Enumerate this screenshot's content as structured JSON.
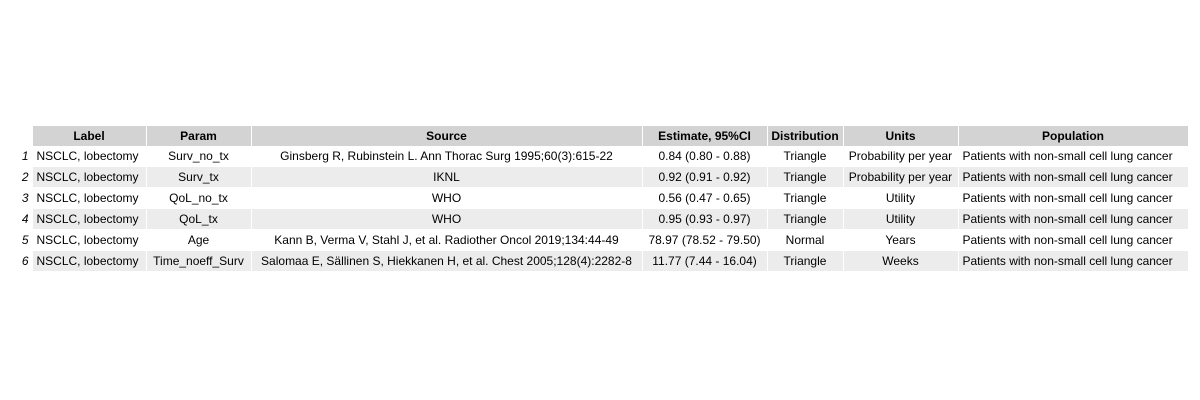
{
  "table": {
    "headers": [
      "Label",
      "Param",
      "Source",
      "Estimate, 95%CI",
      "Distribution",
      "Units",
      "Population"
    ],
    "rows": [
      {
        "index": "1",
        "label": "NSCLC, lobectomy",
        "param": "Surv_no_tx",
        "source": "Ginsberg R, Rubinstein L. Ann Thorac Surg 1995;60(3):615-22",
        "estimate": "0.84 (0.80 - 0.88)",
        "distribution": "Triangle",
        "units": "Probability per year",
        "population": "Patients with non-small cell lung cancer"
      },
      {
        "index": "2",
        "label": "NSCLC, lobectomy",
        "param": "Surv_tx",
        "source": "IKNL",
        "estimate": "0.92 (0.91 - 0.92)",
        "distribution": "Triangle",
        "units": "Probability per year",
        "population": "Patients with non-small cell lung cancer"
      },
      {
        "index": "3",
        "label": "NSCLC, lobectomy",
        "param": "QoL_no_tx",
        "source": "WHO",
        "estimate": "0.56 (0.47 - 0.65)",
        "distribution": "Triangle",
        "units": "Utility",
        "population": "Patients with non-small cell lung cancer"
      },
      {
        "index": "4",
        "label": "NSCLC, lobectomy",
        "param": "QoL_tx",
        "source": "WHO",
        "estimate": "0.95 (0.93 - 0.97)",
        "distribution": "Triangle",
        "units": "Utility",
        "population": "Patients with non-small cell lung cancer"
      },
      {
        "index": "5",
        "label": "NSCLC, lobectomy",
        "param": "Age",
        "source": "Kann B, Verma V, Stahl J, et al. Radiother Oncol 2019;134:44-49",
        "estimate": "78.97 (78.52 - 79.50)",
        "distribution": "Normal",
        "units": "Years",
        "population": "Patients with non-small cell lung cancer"
      },
      {
        "index": "6",
        "label": "NSCLC, lobectomy",
        "param": "Time_noeff_Surv",
        "source": "Salomaa E, Sällinen S, Hiekkanen H, et al. Chest 2005;128(4):2282-8",
        "estimate": "11.77 (7.44 - 16.04)",
        "distribution": "Triangle",
        "units": "Weeks",
        "population": "Patients with non-small cell lung cancer"
      }
    ]
  },
  "colors": {
    "header_bg": "#d3d3d3",
    "row_alt_bg": "#ececec",
    "row_bg": "#ffffff"
  }
}
